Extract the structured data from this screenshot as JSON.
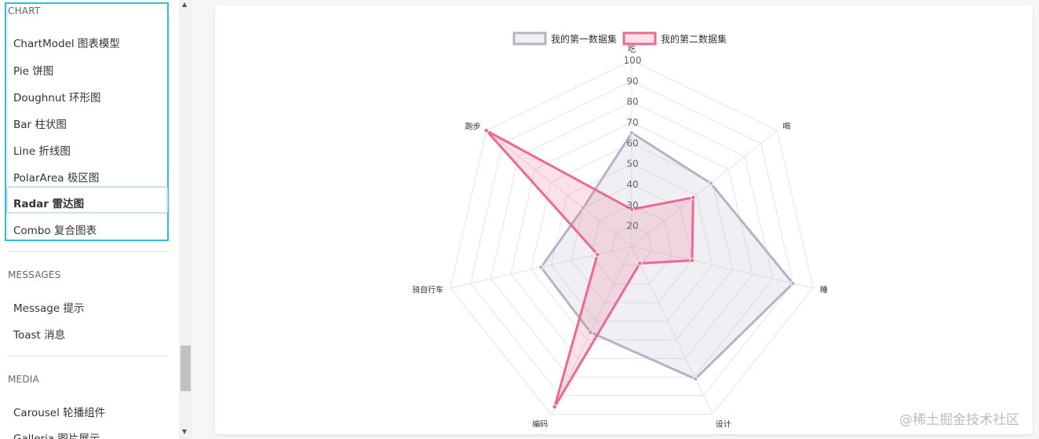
{
  "sidebar": {
    "sections": [
      {
        "title": "CHART",
        "items": [
          {
            "label": "ChartModel 图表模型"
          },
          {
            "label": "Pie 饼图"
          },
          {
            "label": "Doughnut 环形图"
          },
          {
            "label": "Bar 柱状图"
          },
          {
            "label": "Line 折线图"
          },
          {
            "label": "PolarArea 极区图"
          },
          {
            "label": "Radar 雷达图",
            "active": true
          },
          {
            "label": "Combo 复合图表"
          }
        ]
      },
      {
        "title": "MESSAGES",
        "items": [
          {
            "label": "Message 提示"
          },
          {
            "label": "Toast 消息"
          }
        ]
      },
      {
        "title": "MEDIA",
        "items": [
          {
            "label": "Carousel 轮播组件"
          },
          {
            "label": "Galleria 图片展示"
          }
        ]
      }
    ]
  },
  "scroll_arrows": {
    "up": "▲",
    "down": "▼"
  },
  "watermark": "@稀土掘金技术社区",
  "chart_data": {
    "type": "radar",
    "labels": [
      "吃",
      "喝",
      "睡",
      "设计",
      "编码",
      "骑自行车",
      "跑步"
    ],
    "series": [
      {
        "name": "我的第一数据集",
        "values": [
          65,
          59,
          90,
          81,
          56,
          55,
          40
        ],
        "color": "#b3b5c6",
        "fill": "rgba(179,181,198,0.2)"
      },
      {
        "name": "我的第二数据集",
        "values": [
          28,
          48,
          40,
          19,
          96,
          27,
          100
        ],
        "color": "#ed6a8d",
        "fill": "rgba(237,106,141,0.2)"
      }
    ],
    "r_ticks": [
      20,
      30,
      40,
      50,
      60,
      70,
      80,
      90,
      100
    ],
    "r_range": [
      10,
      100
    ],
    "grid": true,
    "legend": "top"
  }
}
